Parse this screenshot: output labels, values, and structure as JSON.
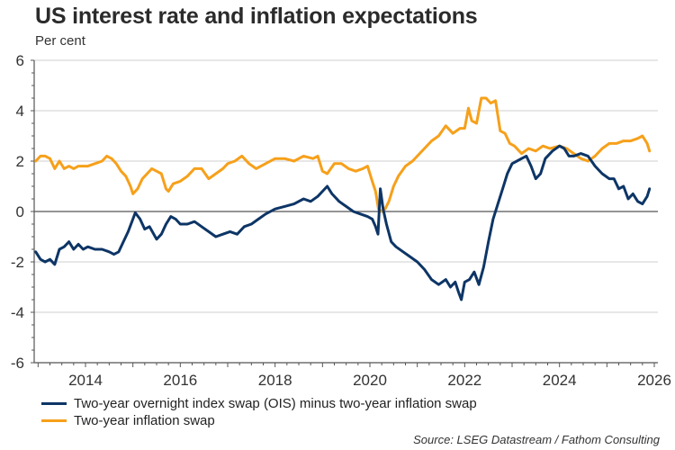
{
  "chart_data": {
    "type": "line",
    "title": "US interest rate and inflation expectations",
    "ylabel": "Per cent",
    "xlabel": "",
    "ylim": [
      -6,
      6
    ],
    "xlim": [
      2012.92,
      2026.1
    ],
    "yticks": [
      6,
      4,
      2,
      0,
      -2,
      -4,
      -6
    ],
    "ytick_labels": [
      "6",
      "4",
      "2",
      "0",
      "-2",
      "-4",
      "-6"
    ],
    "xticks": [
      2014,
      2016,
      2018,
      2020,
      2022,
      2024,
      2026
    ],
    "xtick_labels": [
      "2014",
      "2016",
      "2018",
      "2020",
      "2022",
      "2024",
      "2026"
    ],
    "grid": "horizontal",
    "legend_position": "bottom-left",
    "source": "Source: LSEG Datastream / Fathom Consulting",
    "series": [
      {
        "name": "Two-year overnight index swap (OIS) minus two-year inflation swap",
        "color": "#0d3566",
        "x": [
          2012.95,
          2013.05,
          2013.15,
          2013.25,
          2013.35,
          2013.45,
          2013.55,
          2013.65,
          2013.75,
          2013.85,
          2013.95,
          2014.05,
          2014.2,
          2014.35,
          2014.5,
          2014.6,
          2014.7,
          2014.8,
          2014.9,
          2015.0,
          2015.05,
          2015.15,
          2015.25,
          2015.35,
          2015.5,
          2015.6,
          2015.7,
          2015.8,
          2015.9,
          2016.0,
          2016.15,
          2016.3,
          2016.45,
          2016.6,
          2016.75,
          2016.9,
          2017.05,
          2017.2,
          2017.35,
          2017.5,
          2017.65,
          2017.8,
          2018.0,
          2018.2,
          2018.4,
          2018.6,
          2018.75,
          2018.9,
          2019.0,
          2019.1,
          2019.2,
          2019.35,
          2019.5,
          2019.65,
          2019.8,
          2019.95,
          2020.05,
          2020.12,
          2020.17,
          2020.22,
          2020.28,
          2020.35,
          2020.45,
          2020.55,
          2020.7,
          2020.85,
          2021.0,
          2021.15,
          2021.3,
          2021.45,
          2021.6,
          2021.7,
          2021.8,
          2021.87,
          2021.93,
          2022.0,
          2022.1,
          2022.2,
          2022.3,
          2022.4,
          2022.5,
          2022.6,
          2022.7,
          2022.8,
          2022.9,
          2023.0,
          2023.1,
          2023.2,
          2023.3,
          2023.4,
          2023.5,
          2023.6,
          2023.7,
          2023.85,
          2024.0,
          2024.1,
          2024.2,
          2024.3,
          2024.45,
          2024.6,
          2024.75,
          2024.9,
          2025.05,
          2025.15,
          2025.25,
          2025.35,
          2025.45,
          2025.55,
          2025.65,
          2025.75,
          2025.85,
          2025.9
        ],
        "values": [
          -1.6,
          -1.9,
          -2.0,
          -1.9,
          -2.1,
          -1.5,
          -1.4,
          -1.2,
          -1.5,
          -1.3,
          -1.5,
          -1.4,
          -1.5,
          -1.5,
          -1.6,
          -1.7,
          -1.6,
          -1.2,
          -0.8,
          -0.3,
          -0.05,
          -0.3,
          -0.7,
          -0.6,
          -1.1,
          -0.9,
          -0.5,
          -0.2,
          -0.3,
          -0.5,
          -0.5,
          -0.4,
          -0.6,
          -0.8,
          -1.0,
          -0.9,
          -0.8,
          -0.9,
          -0.6,
          -0.5,
          -0.3,
          -0.1,
          0.1,
          0.2,
          0.3,
          0.5,
          0.4,
          0.6,
          0.8,
          1.0,
          0.7,
          0.4,
          0.2,
          0.0,
          -0.1,
          -0.2,
          -0.3,
          -0.6,
          -0.9,
          0.9,
          0.1,
          -0.5,
          -1.2,
          -1.4,
          -1.6,
          -1.8,
          -2.0,
          -2.3,
          -2.7,
          -2.9,
          -2.7,
          -3.0,
          -2.8,
          -3.2,
          -3.5,
          -2.8,
          -2.7,
          -2.4,
          -2.9,
          -2.2,
          -1.2,
          -0.3,
          0.3,
          0.9,
          1.5,
          1.9,
          2.0,
          2.1,
          2.2,
          1.8,
          1.3,
          1.5,
          2.1,
          2.4,
          2.6,
          2.5,
          2.2,
          2.2,
          2.3,
          2.2,
          1.8,
          1.5,
          1.3,
          1.3,
          0.9,
          1.0,
          0.5,
          0.7,
          0.4,
          0.3,
          0.6,
          0.9
        ],
        "last_value": 0.9
      },
      {
        "name": "Two-year inflation swap",
        "color": "#f6a01a",
        "x": [
          2012.95,
          2013.05,
          2013.15,
          2013.25,
          2013.35,
          2013.45,
          2013.55,
          2013.65,
          2013.75,
          2013.85,
          2013.95,
          2014.05,
          2014.2,
          2014.35,
          2014.45,
          2014.55,
          2014.65,
          2014.75,
          2014.85,
          2014.95,
          2015.0,
          2015.1,
          2015.2,
          2015.3,
          2015.4,
          2015.5,
          2015.6,
          2015.7,
          2015.75,
          2015.85,
          2016.0,
          2016.15,
          2016.3,
          2016.45,
          2016.6,
          2016.75,
          2016.9,
          2017.0,
          2017.15,
          2017.3,
          2017.45,
          2017.6,
          2017.8,
          2018.0,
          2018.2,
          2018.4,
          2018.6,
          2018.8,
          2018.9,
          2019.0,
          2019.1,
          2019.25,
          2019.4,
          2019.55,
          2019.7,
          2019.85,
          2019.95,
          2020.05,
          2020.12,
          2020.18,
          2020.25,
          2020.32,
          2020.4,
          2020.5,
          2020.6,
          2020.75,
          2020.9,
          2021.0,
          2021.15,
          2021.3,
          2021.45,
          2021.6,
          2021.75,
          2021.9,
          2022.0,
          2022.08,
          2022.15,
          2022.25,
          2022.35,
          2022.45,
          2022.55,
          2022.65,
          2022.75,
          2022.85,
          2022.95,
          2023.05,
          2023.2,
          2023.35,
          2023.5,
          2023.65,
          2023.8,
          2024.0,
          2024.15,
          2024.3,
          2024.45,
          2024.6,
          2024.75,
          2024.9,
          2025.05,
          2025.2,
          2025.35,
          2025.5,
          2025.65,
          2025.75,
          2025.85,
          2025.9
        ],
        "values": [
          2.0,
          2.2,
          2.2,
          2.1,
          1.7,
          2.0,
          1.7,
          1.8,
          1.7,
          1.8,
          1.8,
          1.8,
          1.9,
          2.0,
          2.2,
          2.1,
          1.9,
          1.6,
          1.4,
          1.0,
          0.7,
          0.9,
          1.3,
          1.5,
          1.7,
          1.6,
          1.5,
          0.9,
          0.8,
          1.1,
          1.2,
          1.4,
          1.7,
          1.7,
          1.3,
          1.5,
          1.7,
          1.9,
          2.0,
          2.2,
          1.9,
          1.7,
          1.9,
          2.1,
          2.1,
          2.0,
          2.2,
          2.1,
          2.2,
          1.6,
          1.5,
          1.9,
          1.9,
          1.7,
          1.6,
          1.7,
          1.8,
          1.2,
          0.8,
          0.1,
          0.0,
          0.1,
          0.4,
          1.0,
          1.4,
          1.8,
          2.0,
          2.2,
          2.5,
          2.8,
          3.0,
          3.4,
          3.1,
          3.3,
          3.3,
          4.1,
          3.6,
          3.5,
          4.5,
          4.5,
          4.3,
          4.4,
          3.2,
          3.1,
          2.7,
          2.6,
          2.3,
          2.5,
          2.4,
          2.6,
          2.5,
          2.6,
          2.5,
          2.3,
          2.1,
          2.0,
          2.2,
          2.5,
          2.7,
          2.7,
          2.8,
          2.8,
          2.9,
          3.0,
          2.7,
          2.4
        ],
        "last_value": 2.4
      }
    ]
  }
}
